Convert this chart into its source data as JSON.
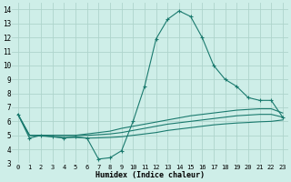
{
  "xlabel": "Humidex (Indice chaleur)",
  "bg_color": "#ceeee8",
  "grid_color": "#aed4cc",
  "line_color": "#1a7a6e",
  "xlim_min": -0.5,
  "xlim_max": 23.5,
  "ylim_min": 3,
  "ylim_max": 14.5,
  "xticks": [
    0,
    1,
    2,
    3,
    4,
    5,
    6,
    7,
    8,
    9,
    10,
    11,
    12,
    13,
    14,
    15,
    16,
    17,
    18,
    19,
    20,
    21,
    22,
    23
  ],
  "yticks": [
    3,
    4,
    5,
    6,
    7,
    8,
    9,
    10,
    11,
    12,
    13,
    14
  ],
  "series_main": {
    "x": [
      0,
      1,
      2,
      3,
      4,
      5,
      6,
      7,
      8,
      9,
      10,
      11,
      12,
      13,
      14,
      15,
      16,
      17,
      18,
      19,
      20,
      21,
      22,
      23
    ],
    "y": [
      6.5,
      4.8,
      5.0,
      4.9,
      4.8,
      4.9,
      4.8,
      3.3,
      3.4,
      3.9,
      6.0,
      8.5,
      11.9,
      13.3,
      13.9,
      13.5,
      12.0,
      10.0,
      9.0,
      8.5,
      7.7,
      7.5,
      7.5,
      6.3
    ]
  },
  "series_flat": [
    [
      6.5,
      5.0,
      5.0,
      5.0,
      5.0,
      5.0,
      5.1,
      5.2,
      5.3,
      5.5,
      5.65,
      5.8,
      5.95,
      6.1,
      6.25,
      6.4,
      6.5,
      6.6,
      6.7,
      6.8,
      6.85,
      6.9,
      6.9,
      6.6
    ],
    [
      6.5,
      5.0,
      5.0,
      5.0,
      5.0,
      5.0,
      5.0,
      5.05,
      5.1,
      5.2,
      5.35,
      5.5,
      5.65,
      5.8,
      5.9,
      6.0,
      6.1,
      6.2,
      6.3,
      6.4,
      6.45,
      6.5,
      6.5,
      6.3
    ],
    [
      6.5,
      5.0,
      4.95,
      4.9,
      4.85,
      4.85,
      4.8,
      4.82,
      4.85,
      4.9,
      5.0,
      5.1,
      5.2,
      5.35,
      5.45,
      5.55,
      5.65,
      5.75,
      5.82,
      5.88,
      5.92,
      5.97,
      6.0,
      6.1
    ]
  ]
}
